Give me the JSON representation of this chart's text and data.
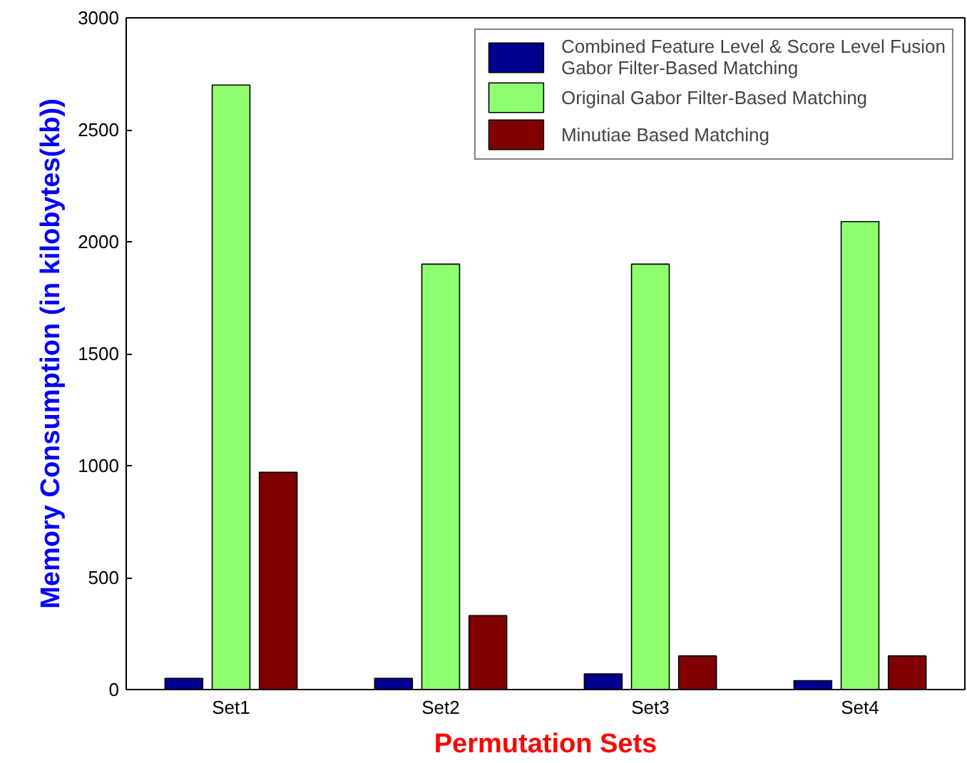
{
  "chart_data": {
    "type": "bar",
    "xlabel": "Permutation Sets",
    "ylabel": "Memory Consumption (in kilobytes(kb))",
    "categories": [
      "Set1",
      "Set2",
      "Set3",
      "Set4"
    ],
    "series": [
      {
        "name": "Combined Feature Level & Score Level Fusion Gabor Filter-Based Matching",
        "color": "#00008f",
        "values": [
          50,
          50,
          70,
          40
        ]
      },
      {
        "name": "Original Gabor Filter-Based Matching",
        "color": "#8fff70",
        "values": [
          2700,
          1900,
          1900,
          2090
        ]
      },
      {
        "name": "Minutiae Based Matching",
        "color": "#800000",
        "values": [
          970,
          330,
          150,
          150
        ]
      }
    ],
    "ylim": [
      0,
      3000
    ],
    "yticks": [
      0,
      500,
      1000,
      1500,
      2000,
      2500,
      3000
    ],
    "grid": false,
    "legend": "top right"
  }
}
